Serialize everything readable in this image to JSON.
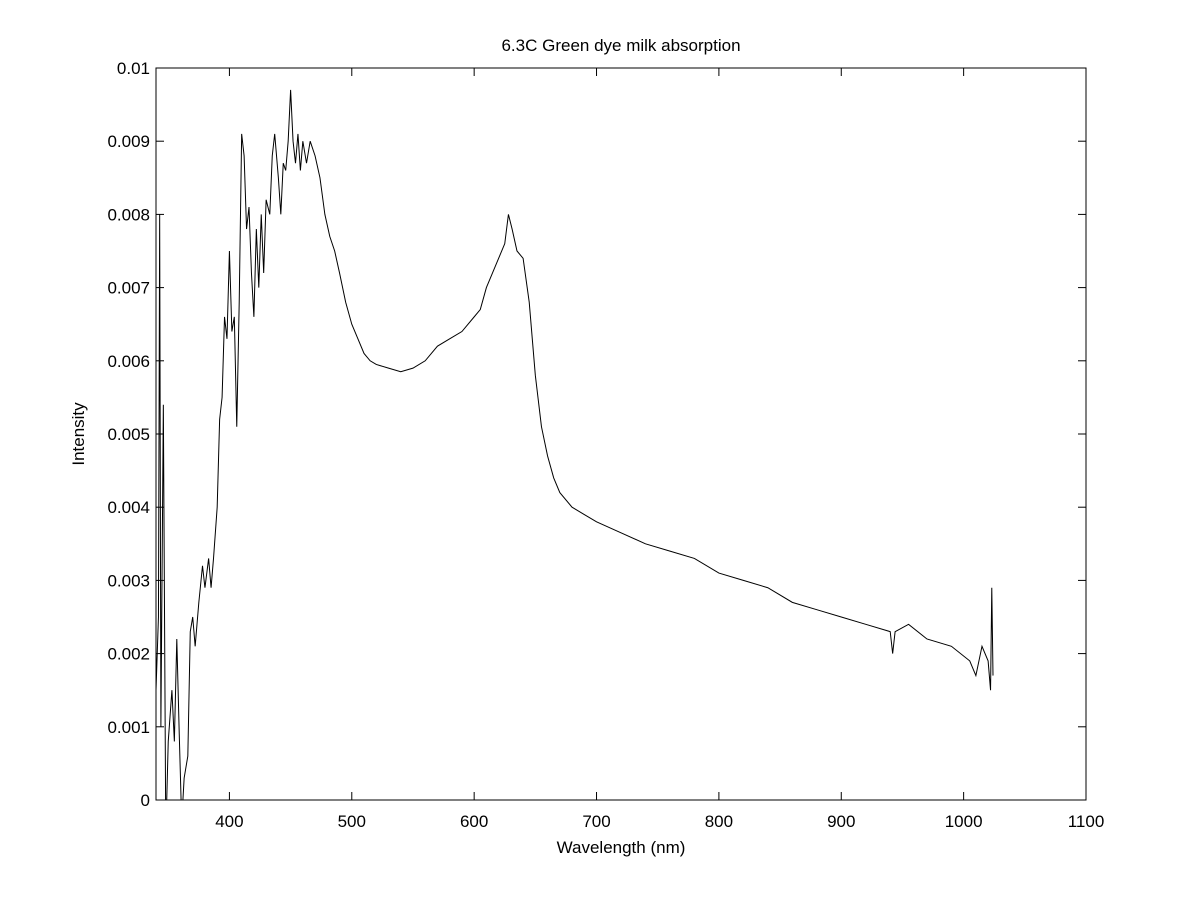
{
  "chart_data": {
    "type": "line",
    "title": "6.3C Green dye milk absorption",
    "x_label": "Wavelength (nm)",
    "y_label": "Intensity",
    "x": [
      340,
      342,
      343,
      344,
      346,
      348,
      350,
      353,
      355,
      357,
      359,
      361,
      363,
      366,
      368,
      370,
      372,
      375,
      378,
      380,
      383,
      385,
      387,
      390,
      392,
      394,
      396,
      398,
      400,
      402,
      404,
      406,
      408,
      410,
      412,
      414,
      416,
      418,
      420,
      422,
      424,
      426,
      428,
      430,
      433,
      435,
      437,
      440,
      442,
      444,
      446,
      448,
      450,
      452,
      454,
      456,
      458,
      460,
      463,
      466,
      470,
      474,
      478,
      482,
      486,
      490,
      495,
      500,
      505,
      510,
      515,
      520,
      530,
      540,
      550,
      560,
      570,
      580,
      590,
      600,
      605,
      610,
      615,
      620,
      625,
      628,
      631,
      635,
      640,
      645,
      650,
      655,
      660,
      665,
      670,
      680,
      690,
      700,
      720,
      740,
      760,
      780,
      800,
      820,
      840,
      860,
      880,
      900,
      920,
      940,
      942,
      944,
      955,
      970,
      990,
      1005,
      1010,
      1015,
      1020,
      1022,
      1023,
      1024
    ],
    "series": [
      {
        "name": "Intensity",
        "color": "#000000",
        "values": [
          0.0015,
          0.0025,
          0.008,
          0.001,
          0.0054,
          -0.0005,
          0.0008,
          0.0015,
          0.0008,
          0.0022,
          0.0009,
          -0.0003,
          0.0003,
          0.0006,
          0.0023,
          0.0025,
          0.0021,
          0.0027,
          0.0032,
          0.0029,
          0.0033,
          0.0029,
          0.0033,
          0.004,
          0.0052,
          0.0055,
          0.0066,
          0.0063,
          0.0075,
          0.0064,
          0.0066,
          0.0051,
          0.0068,
          0.0091,
          0.0088,
          0.0078,
          0.0081,
          0.0072,
          0.0066,
          0.0078,
          0.007,
          0.008,
          0.0072,
          0.0082,
          0.008,
          0.0088,
          0.0091,
          0.0085,
          0.008,
          0.0087,
          0.0086,
          0.009,
          0.0097,
          0.009,
          0.0087,
          0.0091,
          0.0086,
          0.009,
          0.0087,
          0.009,
          0.0088,
          0.0085,
          0.008,
          0.0077,
          0.0075,
          0.0072,
          0.0068,
          0.0065,
          0.0063,
          0.0061,
          0.006,
          0.00595,
          0.0059,
          0.00585,
          0.0059,
          0.006,
          0.0062,
          0.0063,
          0.0064,
          0.0066,
          0.0067,
          0.007,
          0.0072,
          0.0074,
          0.0076,
          0.008,
          0.0078,
          0.0075,
          0.0074,
          0.0068,
          0.0058,
          0.0051,
          0.0047,
          0.0044,
          0.0042,
          0.004,
          0.0039,
          0.0038,
          0.00365,
          0.0035,
          0.0034,
          0.0033,
          0.0031,
          0.003,
          0.0029,
          0.0027,
          0.0026,
          0.0025,
          0.0024,
          0.0023,
          0.002,
          0.0023,
          0.0024,
          0.0022,
          0.0021,
          0.0019,
          0.0017,
          0.0021,
          0.0019,
          0.0015,
          0.0029,
          0.0017
        ]
      }
    ],
    "xlim": [
      340,
      1100
    ],
    "ylim": [
      0,
      0.01
    ],
    "xticks": [
      400,
      500,
      600,
      700,
      800,
      900,
      1000,
      1100
    ],
    "yticks": [
      0,
      0.001,
      0.002,
      0.003,
      0.004,
      0.005,
      0.006,
      0.007,
      0.008,
      0.009,
      0.01
    ]
  }
}
